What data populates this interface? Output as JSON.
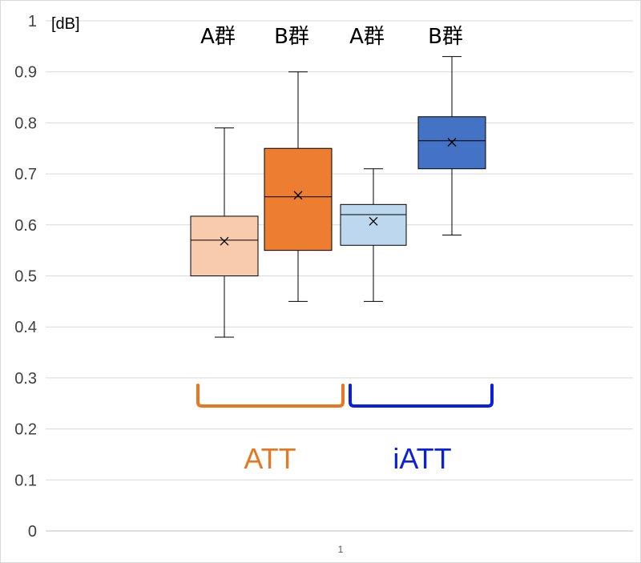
{
  "chart_data": {
    "type": "box",
    "unit": "[dB]",
    "ylim": [
      0,
      1
    ],
    "yticks": [
      "0",
      "0.1",
      "0.2",
      "0.3",
      "0.4",
      "0.5",
      "0.6",
      "0.7",
      "0.8",
      "0.9",
      "1"
    ],
    "x_tick": "1",
    "grid": true,
    "series": [
      {
        "label": "A群",
        "bracket": "ATT",
        "color": "#F8CBAD",
        "min": 0.38,
        "q1": 0.5,
        "median": 0.57,
        "mean": 0.568,
        "q3": 0.617,
        "max": 0.79
      },
      {
        "label": "B群",
        "bracket": "ATT",
        "color": "#ED7D31",
        "min": 0.45,
        "q1": 0.55,
        "median": 0.655,
        "mean": 0.658,
        "q3": 0.75,
        "max": 0.9
      },
      {
        "label": "A群",
        "bracket": "iATT",
        "color": "#BDD7EE",
        "min": 0.45,
        "q1": 0.56,
        "median": 0.62,
        "mean": 0.607,
        "q3": 0.64,
        "max": 0.71
      },
      {
        "label": "B群",
        "bracket": "iATT",
        "color": "#4472C4",
        "min": 0.58,
        "q1": 0.71,
        "median": 0.765,
        "mean": 0.762,
        "q3": 0.812,
        "max": 0.93
      }
    ],
    "brackets": [
      {
        "label": "ATT",
        "color": "#E87722"
      },
      {
        "label": "iATT",
        "color": "#0A1FE0"
      }
    ]
  }
}
